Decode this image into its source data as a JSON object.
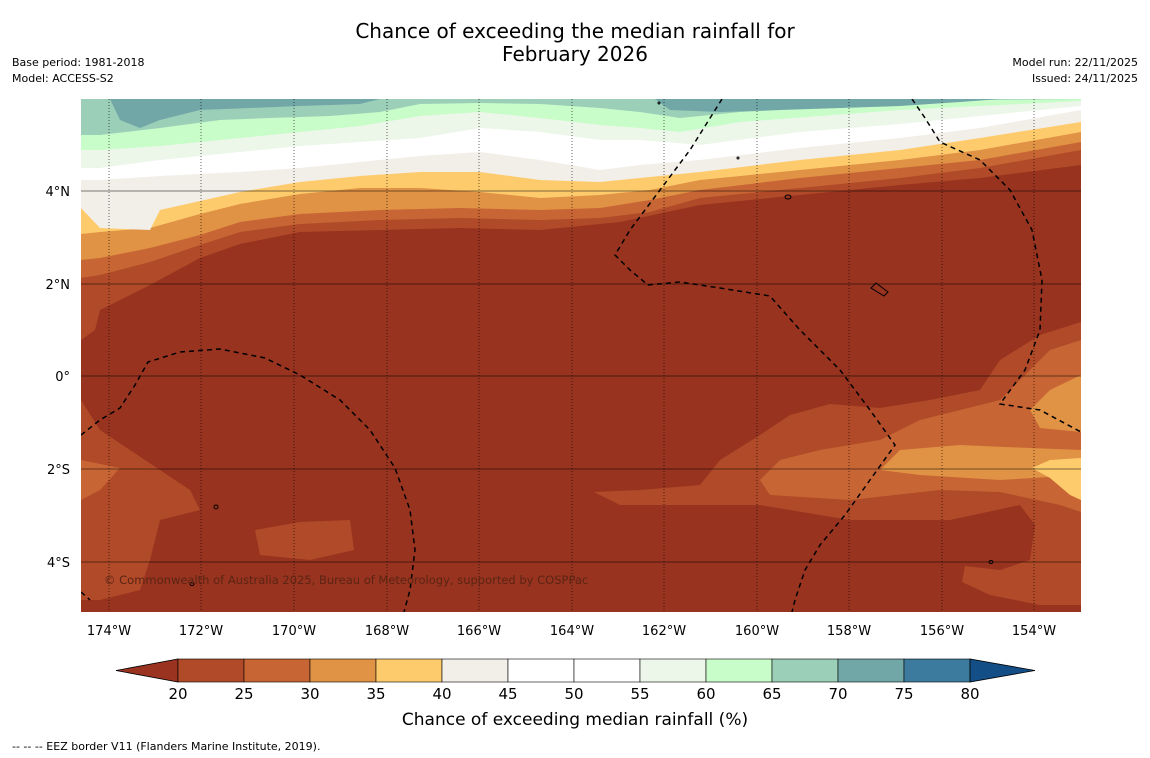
{
  "title": {
    "line1": "Chance of exceeding the median rainfall for",
    "line2": "February 2026"
  },
  "meta": {
    "base_period": "Base period: 1981-2018",
    "model": "Model: ACCESS-S2",
    "model_run": "Model run: 22/11/2025",
    "issued": "Issued: 24/11/2025"
  },
  "map": {
    "lat_labels": [
      "4°N",
      "2°N",
      "0°",
      "2°S",
      "4°S"
    ],
    "lon_labels": [
      "174°W",
      "172°W",
      "170°W",
      "168°W",
      "166°W",
      "164°W",
      "162°W",
      "160°W",
      "158°W",
      "156°W",
      "154°W"
    ],
    "copyright": "© Commonwealth of Australia 2025, Bureau of Meteorology, supported by COSPPac"
  },
  "colorbar": {
    "ticks": [
      "20",
      "25",
      "30",
      "35",
      "40",
      "45",
      "50",
      "55",
      "60",
      "65",
      "70",
      "75",
      "80"
    ],
    "colors": [
      "#9a3320",
      "#b04a28",
      "#c86534",
      "#e09245",
      "#fecb6c",
      "#f2eee8",
      "#ffffff",
      "#ffffff",
      "#ecf7ea",
      "#c8fcc8",
      "#9ccfb8",
      "#72a7a8",
      "#3c7a9e",
      "#134f86"
    ],
    "title": "Chance of exceeding median rainfall (%)"
  },
  "footer": "--  --  -- EEZ border V11 (Flanders Marine Institute, 2019)."
}
